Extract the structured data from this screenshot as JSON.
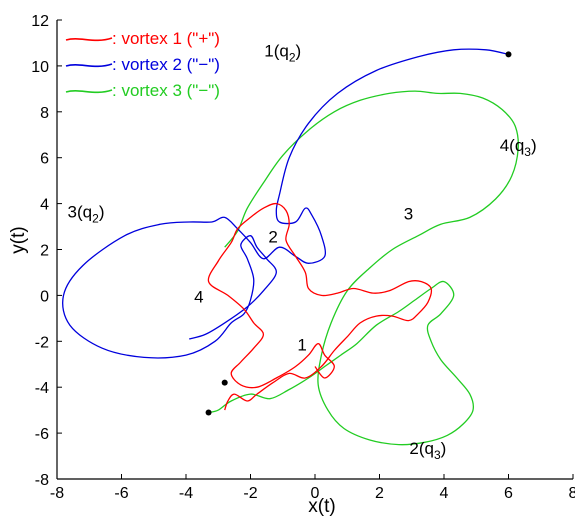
{
  "chart_data": {
    "type": "line",
    "title": "",
    "xlabel": "x(t)",
    "ylabel": "y(t)",
    "xlim": [
      -8,
      8
    ],
    "ylim": [
      -8,
      12
    ],
    "x_ticks": [
      -8,
      -6,
      -4,
      -2,
      0,
      2,
      4,
      6,
      8
    ],
    "x_tick_labels": [
      "-8",
      "-6",
      "-4",
      "-2",
      "0",
      "2",
      "4",
      "6",
      "8"
    ],
    "y_ticks": [
      -8,
      -6,
      -4,
      -2,
      0,
      2,
      4,
      6,
      8,
      10,
      12
    ],
    "y_tick_labels": [
      "-8",
      "-6",
      "-4",
      "-2",
      "0",
      "2",
      "4",
      "6",
      "8",
      "10",
      "12"
    ],
    "grid": false,
    "legend_position": "top-left",
    "legend": [
      {
        "label": ": vortex 1 (\"+\")",
        "color": "#ff0000"
      },
      {
        "label": ": vortex 2 (\"−\")",
        "color": "#0000dd"
      },
      {
        "label": ": vortex 3 (\"−\")",
        "color": "#22cc22"
      }
    ],
    "series": [
      {
        "color": "#ff0000",
        "x": [
          -2.8,
          -2.7,
          -2.5,
          -2.1,
          -1.8,
          -1.3,
          -0.8,
          -0.3,
          0.2,
          0.6,
          1.0,
          1.4,
          1.9,
          2.4,
          2.9,
          3.2,
          3.5,
          3.6,
          3.3,
          2.9,
          2.3,
          1.8,
          1.2,
          0.7,
          0.2,
          -0.2,
          -0.3,
          -0.6,
          -0.9,
          -0.8,
          -0.9,
          -1.2,
          -1.6,
          -2.0,
          -2.4,
          -2.6,
          -3.0,
          -3.3,
          -2.7,
          -2.2,
          -1.9,
          -1.6,
          -1.9,
          -2.3,
          -2.6,
          -2.3,
          -1.8,
          -1.2,
          -0.6,
          -0.2,
          0.1,
          0.3,
          0.6,
          0.3,
          0.0
        ],
        "y": [
          -5.0,
          -4.6,
          -4.3,
          -4.6,
          -4.3,
          -3.8,
          -3.4,
          -3.6,
          -3.1,
          -2.4,
          -1.8,
          -1.2,
          -0.9,
          -0.9,
          -1.1,
          -0.8,
          -0.3,
          0.3,
          0.6,
          0.6,
          0.2,
          0.1,
          0.3,
          0.1,
          0.0,
          0.3,
          1.0,
          1.7,
          2.4,
          3.1,
          3.7,
          4.0,
          3.8,
          3.4,
          2.9,
          2.3,
          1.5,
          0.6,
          0.0,
          -0.6,
          -1.2,
          -1.7,
          -2.3,
          -2.9,
          -3.4,
          -3.9,
          -4.0,
          -3.6,
          -3.1,
          -2.6,
          -2.1,
          -2.6,
          -3.1,
          -3.6,
          -3.1
        ]
      },
      {
        "color": "#0000dd",
        "x": [
          6.0,
          5.3,
          4.3,
          3.2,
          1.9,
          0.7,
          -0.2,
          -0.8,
          -1.1,
          -1.2,
          -1.1,
          -0.6,
          -0.3,
          -0.1,
          0.2,
          0.3,
          -0.2,
          -0.6,
          -1.1,
          -1.6,
          -2.0,
          -2.4,
          -2.8,
          -3.2,
          -3.9,
          -4.8,
          -5.9,
          -7.2,
          -7.8,
          -7.6,
          -6.6,
          -5.3,
          -4.0,
          -3.1,
          -2.6,
          -2.2,
          -2.0,
          -1.9,
          -2.1,
          -2.3,
          -2.0,
          -1.8,
          -1.5,
          -1.2,
          -1.6,
          -2.1,
          -2.8,
          -3.4,
          -3.9
        ],
        "y": [
          10.5,
          10.7,
          10.7,
          10.4,
          9.8,
          8.8,
          7.5,
          6.0,
          4.4,
          3.7,
          3.2,
          3.2,
          3.8,
          3.5,
          2.6,
          1.7,
          1.4,
          1.7,
          2.1,
          1.6,
          2.3,
          2.9,
          3.4,
          3.2,
          3.2,
          3.1,
          2.6,
          1.3,
          0.0,
          -1.3,
          -2.3,
          -2.7,
          -2.6,
          -2.0,
          -1.2,
          -0.8,
          -0.2,
          0.7,
          1.6,
          2.2,
          2.6,
          2.1,
          1.6,
          1.0,
          0.2,
          -0.5,
          -1.2,
          -1.7,
          -1.9
        ]
      },
      {
        "color": "#22cc22",
        "x": [
          -3.3,
          -3.0,
          -2.6,
          -2.0,
          -1.4,
          -0.8,
          -0.2,
          0.3,
          0.8,
          1.3,
          1.9,
          2.6,
          3.1,
          3.6,
          4.0,
          4.3,
          3.9,
          3.5,
          3.6,
          3.9,
          4.4,
          4.8,
          4.9,
          4.6,
          4.1,
          3.4,
          2.6,
          1.7,
          0.9,
          0.4,
          0.1,
          0.2,
          0.5,
          1.0,
          1.7,
          2.4,
          3.2,
          3.9,
          4.8,
          5.6,
          6.1,
          6.3,
          6.2,
          5.8,
          5.2,
          4.5,
          3.8,
          3.1,
          2.3,
          1.4,
          0.6,
          -0.2,
          -1.0,
          -1.6,
          -2.1,
          -2.4,
          -2.8
        ],
        "y": [
          -5.1,
          -5.0,
          -4.6,
          -4.3,
          -4.5,
          -4.1,
          -3.6,
          -3.1,
          -2.6,
          -2.1,
          -1.3,
          -0.7,
          -0.2,
          0.3,
          0.6,
          0.0,
          -0.8,
          -1.3,
          -2.0,
          -2.8,
          -3.6,
          -4.3,
          -5.0,
          -5.6,
          -6.1,
          -6.4,
          -6.5,
          -6.3,
          -5.8,
          -5.0,
          -3.9,
          -2.6,
          -1.2,
          0.2,
          1.2,
          2.0,
          2.6,
          3.1,
          3.4,
          4.2,
          5.2,
          6.4,
          7.4,
          8.1,
          8.6,
          8.8,
          8.8,
          8.9,
          8.8,
          8.5,
          8.0,
          7.2,
          6.1,
          4.9,
          3.8,
          2.8,
          2.1
        ]
      }
    ],
    "markers": [
      {
        "x": 6.0,
        "y": 10.5
      },
      {
        "x": -2.8,
        "y": -3.8
      },
      {
        "x": -3.3,
        "y": -5.1
      }
    ],
    "annotations": [
      {
        "text": "1(q",
        "sub": "2",
        "close": ")",
        "x": -1.0,
        "y": 10.4
      },
      {
        "text": "4(q",
        "sub": "3",
        "close": ")",
        "x": 6.3,
        "y": 6.3
      },
      {
        "text": "3(q",
        "sub": "2",
        "close": ")",
        "x": -7.1,
        "y": 3.4
      },
      {
        "text": "2(q",
        "sub": "3",
        "close": ")",
        "x": 3.5,
        "y": -6.9
      },
      {
        "text": "3",
        "sub": "",
        "close": "",
        "x": 2.9,
        "y": 3.3
      },
      {
        "text": "2",
        "sub": "",
        "close": "",
        "x": -1.3,
        "y": 2.3
      },
      {
        "text": "4",
        "sub": "",
        "close": "",
        "x": -3.6,
        "y": -0.3
      },
      {
        "text": "1",
        "sub": "",
        "close": "",
        "x": -0.4,
        "y": -2.4
      }
    ]
  }
}
